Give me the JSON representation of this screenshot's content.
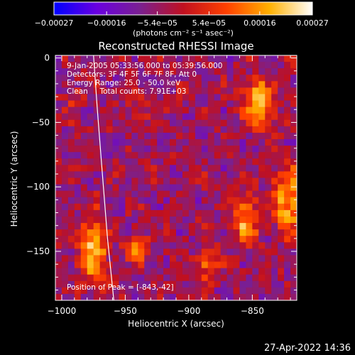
{
  "chart_data": {
    "type": "heatmap",
    "title": "Reconstructed RHESSI Image",
    "xlabel": "Heliocentric X (arcsec)",
    "ylabel": "Heliocentric Y (arcsec)",
    "xlim": [
      -1005,
      -815
    ],
    "ylim": [
      -188,
      2
    ],
    "x_ticks": [
      -1000,
      -950,
      -900,
      -850
    ],
    "y_ticks": [
      0,
      -50,
      -100,
      -150
    ],
    "x_tick_labels": [
      "−1000",
      "−950",
      "−900",
      "−850"
    ],
    "y_tick_labels": [
      "0",
      "−50",
      "−100",
      "−150"
    ],
    "colorbar": {
      "range": [
        -0.00027,
        0.00027
      ],
      "ticks": [
        -0.00027,
        -0.00016,
        -5.4e-05,
        5.4e-05,
        0.00016,
        0.00027
      ],
      "tick_labels": [
        "−0.00027",
        "−0.00016",
        "−5.4e−05",
        "5.4e−05",
        "0.00016",
        "0.00027"
      ],
      "unit_label": "(photons cm⁻² s⁻¹ asec⁻²)",
      "stops": [
        "#0000ff",
        "#6a00e0",
        "#7a2090",
        "#c01020",
        "#ff4000",
        "#ffb000",
        "#ffffff"
      ]
    },
    "annotations": [
      "9-Jan-2005 05:33:56.000 to 05:39:56.000",
      "Detectors: 3F 4F 5F 6F 7F 8F, Att 0",
      "Energy Range: 25.0 - 50.0 keV",
      "Clean     Total counts: 7.91E+03"
    ],
    "peak_label": "Position of Peak = [-843,-42]",
    "limb_curve": [
      [
        -975,
        2
      ],
      [
        -972,
        -40
      ],
      [
        -968,
        -90
      ],
      [
        -964,
        -140
      ],
      [
        -959,
        -188
      ]
    ],
    "grid": {
      "nx": 38,
      "ny": 38,
      "x0": -1005,
      "y0": 2,
      "dx": 5,
      "dy": -5
    },
    "sources": [
      {
        "x": -845,
        "y": -35,
        "sx": 8,
        "sy": 12,
        "amp": 0.00027
      },
      {
        "x": -822,
        "y": -110,
        "sx": 8,
        "sy": 18,
        "amp": 0.00024
      },
      {
        "x": -855,
        "y": -125,
        "sx": 7,
        "sy": 12,
        "amp": 0.00022
      },
      {
        "x": -975,
        "y": -148,
        "sx": 7,
        "sy": 18,
        "amp": 0.00026
      },
      {
        "x": -940,
        "y": -148,
        "sx": 6,
        "sy": 7,
        "amp": 0.00018
      },
      {
        "x": -885,
        "y": -160,
        "sx": 6,
        "sy": 8,
        "amp": 0.00017
      },
      {
        "x": -990,
        "y": -30,
        "sx": 5,
        "sy": 6,
        "amp": 0.0001
      },
      {
        "x": -940,
        "y": -40,
        "sx": 5,
        "sy": 6,
        "amp": 9e-05
      }
    ]
  },
  "footer": {
    "timestamp": "27-Apr-2022 14:36"
  }
}
